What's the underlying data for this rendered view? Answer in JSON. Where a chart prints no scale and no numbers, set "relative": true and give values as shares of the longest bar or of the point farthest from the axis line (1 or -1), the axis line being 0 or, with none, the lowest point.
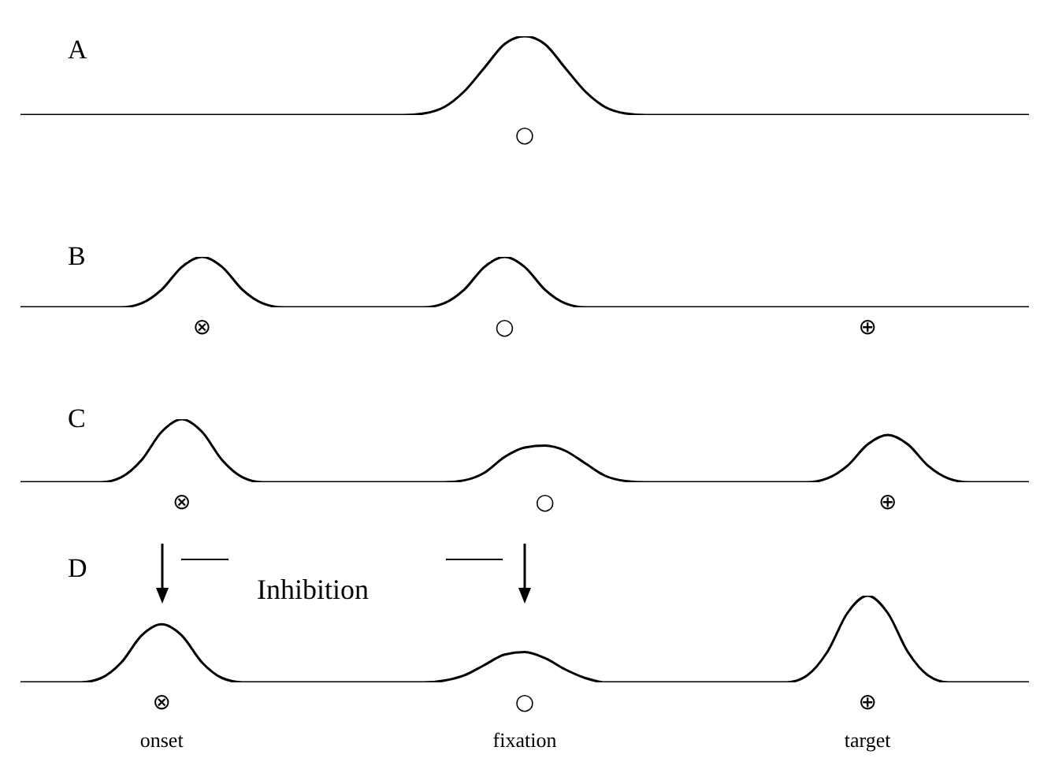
{
  "chart_data": [
    {
      "type": "line",
      "title": "A",
      "relative": true,
      "marker": "none",
      "legend": false,
      "grid": false,
      "categories": [
        null,
        null,
        null,
        null,
        null,
        null,
        null,
        null,
        null,
        null,
        null,
        null,
        null,
        null,
        null,
        null,
        null,
        null,
        null,
        null,
        null,
        null,
        null,
        null,
        null,
        null,
        null,
        null,
        null,
        null,
        null,
        null,
        null,
        null,
        null,
        null,
        null,
        null,
        null,
        null,
        null,
        null,
        null,
        null,
        null,
        null,
        null,
        null,
        null,
        null,
        null
      ],
      "series": [
        {
          "color": "#000000",
          "values": [
            0,
            0,
            0,
            0,
            0,
            0,
            0,
            0,
            0,
            0,
            0,
            0,
            0,
            0,
            0,
            0,
            0,
            0,
            0,
            0,
            0.02,
            0.1,
            0.3,
            0.6,
            0.9,
            1,
            0.9,
            0.6,
            0.3,
            0.1,
            0.02,
            0,
            0,
            0,
            0,
            0,
            0,
            0,
            0,
            0,
            0,
            0,
            0,
            0,
            0,
            0,
            0,
            0,
            0,
            0,
            0
          ]
        }
      ],
      "annotations": [
        "○"
      ]
    },
    {
      "type": "line",
      "title": "B",
      "relative": true,
      "marker": "none",
      "legend": false,
      "grid": false,
      "categories": [
        null,
        null,
        null,
        null,
        null,
        null,
        null,
        null,
        null,
        null,
        null,
        null,
        null,
        null,
        null,
        null,
        null,
        null,
        null,
        null,
        null,
        null,
        null,
        null,
        null,
        null,
        null,
        null,
        null,
        null,
        null,
        null,
        null,
        null,
        null,
        null,
        null,
        null,
        null,
        null,
        null,
        null,
        null,
        null,
        null,
        null,
        null,
        null,
        null,
        null,
        null
      ],
      "series": [
        {
          "color": "#000000",
          "values": [
            0,
            0,
            0,
            0,
            0,
            0,
            0.08,
            0.35,
            0.8,
            1,
            0.8,
            0.35,
            0.08,
            0,
            0,
            0,
            0,
            0,
            0,
            0,
            0,
            0.08,
            0.35,
            0.8,
            1,
            0.8,
            0.35,
            0.08,
            0,
            0,
            0,
            0,
            0,
            0,
            0,
            0,
            0,
            0,
            0,
            0,
            0,
            0,
            0,
            0,
            0,
            0,
            0,
            0,
            0,
            0,
            0
          ]
        }
      ],
      "annotations": [
        "⊗",
        "○",
        "⊕"
      ]
    },
    {
      "type": "line",
      "title": "C",
      "relative": true,
      "marker": "none",
      "legend": false,
      "grid": false,
      "categories": [
        null,
        null,
        null,
        null,
        null,
        null,
        null,
        null,
        null,
        null,
        null,
        null,
        null,
        null,
        null,
        null,
        null,
        null,
        null,
        null,
        null,
        null,
        null,
        null,
        null,
        null,
        null,
        null,
        null,
        null,
        null,
        null,
        null,
        null,
        null,
        null,
        null,
        null,
        null,
        null,
        null,
        null,
        null,
        null,
        null,
        null,
        null,
        null,
        null,
        null,
        null
      ],
      "series": [
        {
          "color": "#000000",
          "values": [
            0,
            0,
            0,
            0,
            0,
            0.08,
            0.35,
            0.8,
            1,
            0.8,
            0.35,
            0.08,
            0,
            0,
            0,
            0,
            0,
            0,
            0,
            0,
            0,
            0,
            0.03,
            0.15,
            0.4,
            0.55,
            0.58,
            0.5,
            0.3,
            0.1,
            0.02,
            0,
            0,
            0,
            0,
            0,
            0,
            0,
            0,
            0,
            0.06,
            0.26,
            0.6,
            0.75,
            0.6,
            0.26,
            0.06,
            0,
            0,
            0,
            0
          ]
        }
      ],
      "annotations": [
        "⊗",
        "○",
        "⊕"
      ]
    },
    {
      "type": "line",
      "title": "D",
      "relative": true,
      "marker": "none",
      "legend": false,
      "grid": false,
      "categories": [
        null,
        null,
        null,
        null,
        null,
        null,
        null,
        "onset",
        null,
        null,
        null,
        null,
        null,
        null,
        null,
        null,
        null,
        null,
        null,
        null,
        null,
        null,
        null,
        null,
        null,
        "fixation",
        null,
        null,
        null,
        null,
        null,
        null,
        null,
        null,
        null,
        null,
        null,
        null,
        null,
        null,
        null,
        null,
        "target",
        null,
        null,
        null,
        null,
        null,
        null,
        null,
        null
      ],
      "series": [
        {
          "color": "#000000",
          "values": [
            0,
            0,
            0,
            0,
            0.05,
            0.23,
            0.54,
            0.67,
            0.54,
            0.23,
            0.05,
            0,
            0,
            0,
            0,
            0,
            0,
            0,
            0,
            0,
            0,
            0.02,
            0.08,
            0.2,
            0.32,
            0.35,
            0.28,
            0.15,
            0.05,
            0,
            0,
            0,
            0,
            0,
            0,
            0,
            0,
            0,
            0,
            0.08,
            0.35,
            0.8,
            1,
            0.8,
            0.35,
            0.08,
            0,
            0,
            0,
            0,
            0
          ]
        }
      ],
      "annotations": [
        "⊗",
        "○",
        "⊕",
        "Inhibition"
      ]
    }
  ]
}
